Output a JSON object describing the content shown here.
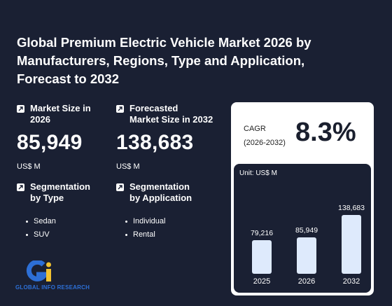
{
  "title": "Global Premium Electric Vehicle Market 2026 by Manufacturers, Regions, Type and Application, Forecast to 2032",
  "market_size": {
    "label_line1": "Market Size in",
    "label_line2": "2026",
    "value": "85,949",
    "unit": "US$ M"
  },
  "forecast": {
    "label_line1": "Forecasted",
    "label_line2": "Market Size in 2032",
    "value": "138,683",
    "unit": "US$ M"
  },
  "segmentation_type": {
    "label_line1": "Segmentation",
    "label_line2": "by Type",
    "items": [
      "Sedan",
      "SUV"
    ]
  },
  "segmentation_application": {
    "label_line1": "Segmentation",
    "label_line2": "by Application",
    "items": [
      "Individual",
      "Rental"
    ]
  },
  "cagr": {
    "label_line1": "CAGR",
    "label_line2": "(2026-2032)",
    "value": "8.3%"
  },
  "logo": {
    "text": "GLOBAL INFO RESEARCH"
  },
  "chart_data": {
    "type": "bar",
    "unit_label": "Unit: US$ M",
    "categories": [
      "2025",
      "2026",
      "2032"
    ],
    "values": [
      79216,
      85949,
      138683
    ],
    "value_labels": [
      "79,216",
      "85,949",
      "138,683"
    ]
  },
  "colors": {
    "background": "#1a2033",
    "bar": "#deeafc",
    "logo_blue": "#2d6fd6",
    "logo_yellow": "#f2c230"
  }
}
